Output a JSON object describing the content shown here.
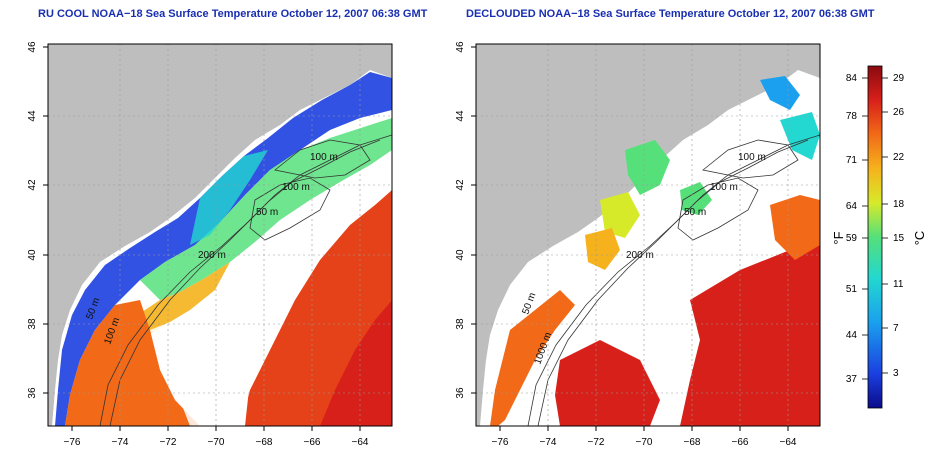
{
  "panels": [
    {
      "title": "RU COOL NOAA−18 Sea Surface Temperature October 12, 2007 06:38 GMT",
      "x_ticks": [
        "−76",
        "−74",
        "−72",
        "−70",
        "−68",
        "−66",
        "−64"
      ],
      "y_ticks": [
        "46",
        "44",
        "42",
        "40",
        "38",
        "36"
      ],
      "contour_labels": [
        "100 m",
        "100 m",
        "50 m",
        "200 m",
        "50 m",
        "100 m"
      ]
    },
    {
      "title": "DECLOUDED NOAA−18 Sea Surface Temperature October 12, 2007 06:38 GMT",
      "x_ticks": [
        "−76",
        "−74",
        "−72",
        "−70",
        "−68",
        "−66",
        "−64"
      ],
      "y_ticks": [
        "46",
        "44",
        "42",
        "40",
        "38",
        "36"
      ],
      "contour_labels": [
        "100 m",
        "100 m",
        "50 m",
        "200 m",
        "50 m",
        "1000 m"
      ]
    }
  ],
  "colorbar": {
    "unit_left": "°F",
    "unit_right": "°C",
    "fahrenheit_ticks": [
      "84",
      "78",
      "71",
      "64",
      "59",
      "51",
      "44",
      "37"
    ],
    "celsius_ticks": [
      "29",
      "26",
      "22",
      "18",
      "15",
      "11",
      "7",
      "3"
    ]
  },
  "colors": {
    "land": "#bebebe",
    "water_clouds": "#ffffff",
    "title": "#1a2fb0",
    "scale": [
      "#0b0b8a",
      "#1b3fe0",
      "#1aa0ee",
      "#22d8d0",
      "#55e07a",
      "#d7ea2a",
      "#f5b21c",
      "#f26a18",
      "#d8201a",
      "#8a0a10"
    ]
  }
}
